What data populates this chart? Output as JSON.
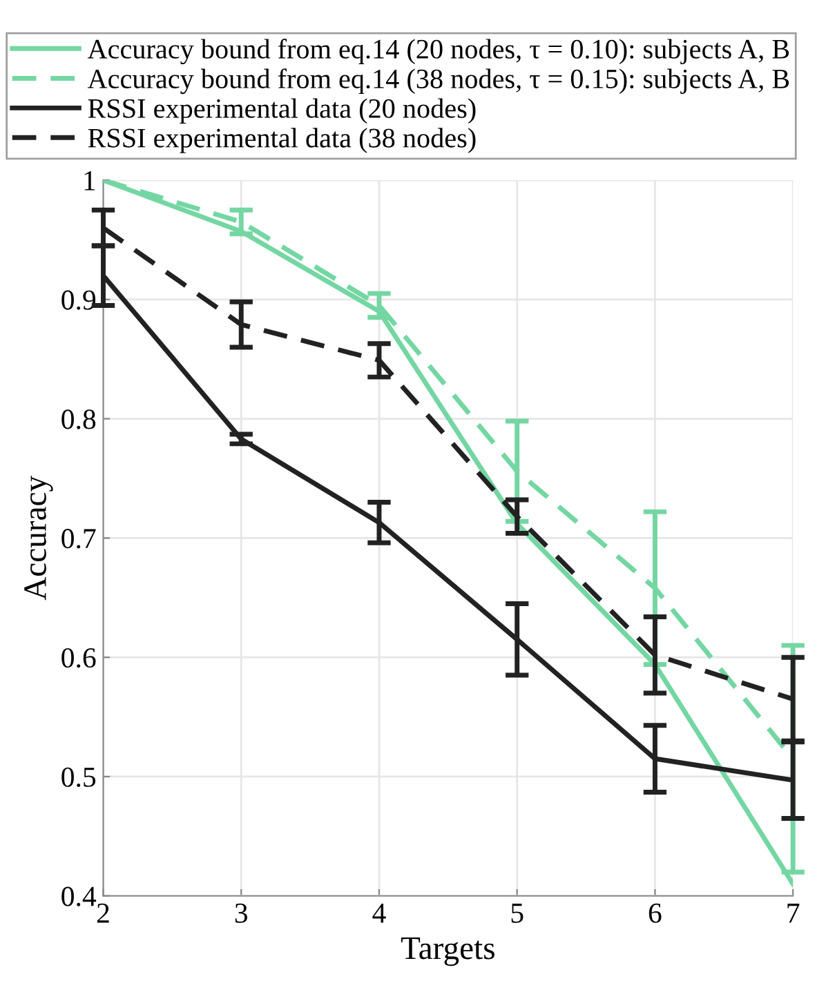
{
  "chart_data": {
    "type": "line",
    "xlabel": "Targets",
    "ylabel": "Accuracy",
    "x": [
      2,
      3,
      4,
      5,
      6,
      7
    ],
    "xlim": [
      2,
      7
    ],
    "xticks": [
      2,
      3,
      4,
      5,
      6,
      7
    ],
    "ylim": [
      0.4,
      1
    ],
    "yticks": [
      0.4,
      0.5,
      0.6,
      0.7,
      0.8,
      0.9,
      1
    ],
    "grid": true,
    "legend": "top",
    "marker": "none",
    "series": [
      {
        "name": "Accuracy bound from eq.14 (20 nodes, τ = 0.10): subjects A, B",
        "color": "#74d6a2",
        "line_style": "solid",
        "values": [
          1.0,
          0.957,
          0.89,
          0.712,
          0.594,
          0.41
        ]
      },
      {
        "name": "Accuracy bound from eq.14 (38 nodes, τ = 0.15): subjects A, B",
        "color": "#74d6a2",
        "line_style": "dashed",
        "values": [
          1.0,
          0.965,
          0.895,
          0.756,
          0.658,
          0.515
        ],
        "errors": [
          null,
          0.01,
          0.01,
          0.042,
          0.064,
          0.095
        ]
      },
      {
        "name": "RSSI experimental data (20 nodes)",
        "color": "#222222",
        "line_style": "solid",
        "values": [
          0.92,
          0.783,
          0.713,
          0.615,
          0.515,
          0.497
        ],
        "errors": [
          0.025,
          0.004,
          0.017,
          0.03,
          0.028,
          0.032
        ]
      },
      {
        "name": "RSSI experimental data (38 nodes)",
        "color": "#222222",
        "line_style": "dashed",
        "values": [
          0.96,
          0.879,
          0.849,
          0.718,
          0.602,
          0.565
        ],
        "errors": [
          0.015,
          0.019,
          0.014,
          0.014,
          0.032,
          0.035
        ]
      }
    ]
  }
}
